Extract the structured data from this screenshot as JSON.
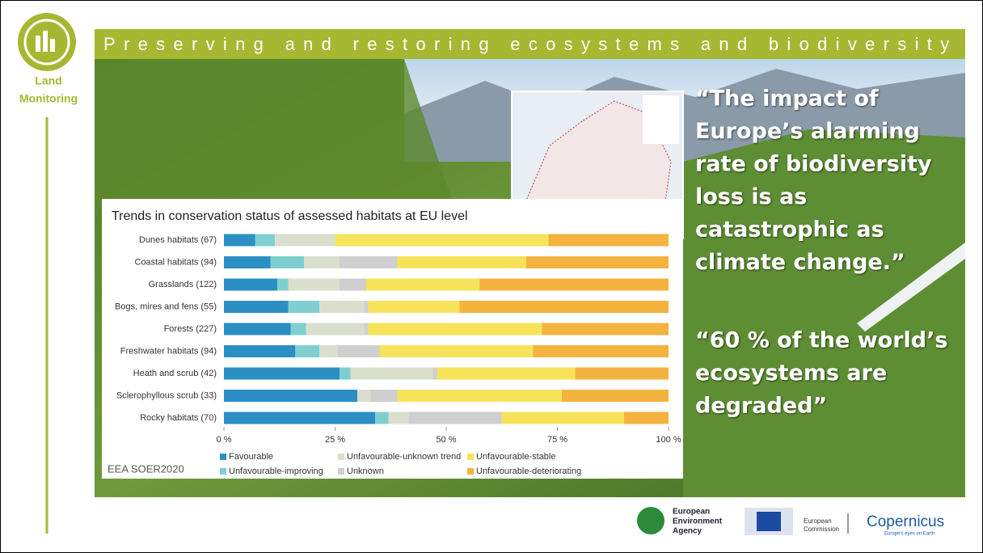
{
  "header": {
    "title": "Preserving and restoring ecosystems and biodiversity",
    "section": [
      "Land",
      "Monitoring"
    ]
  },
  "quotes": [
    [
      "“The impact of",
      "Europe’s alarming",
      "rate of biodiversity",
      "loss is as",
      "catastrophic as",
      "climate change.”"
    ],
    [
      "“60 % of the world’s",
      "ecosystems are",
      "degraded”"
    ]
  ],
  "footer": {
    "eea": [
      "European",
      "Environment",
      "Agency"
    ],
    "ec": [
      "European",
      "Commission"
    ],
    "copernicus": "Copernicus",
    "copernicus_tagline": "Europe's eyes on Earth"
  },
  "chart_data": {
    "type": "stacked-barh",
    "title": "Trends in conservation status of assessed habitats at EU level",
    "source": "EEA SOER2020",
    "categories": [
      "Dunes habitats (67)",
      "Coastal habitats (94)",
      "Grasslands (122)",
      "Bogs, mires and fens (55)",
      "Forests (227)",
      "Freshwater habitats (94)",
      "Heath and scrub (42)",
      "Sclerophyllous scrub (33)",
      "Rocky habitats (70)"
    ],
    "series": [
      {
        "name": "Favourable",
        "color": "#2b8fc4",
        "values": [
          7,
          10.5,
          12,
          14.5,
          15,
          16,
          26,
          30,
          34
        ]
      },
      {
        "name": "Unfavourable-improving",
        "color": "#7fcfd1",
        "values": [
          4.5,
          7.5,
          2.5,
          7,
          3.5,
          5.5,
          2.5,
          0,
          3
        ]
      },
      {
        "name": "Unfavourable-unknown trend",
        "color": "#d9dfcc",
        "values": [
          13.5,
          8,
          11.5,
          10,
          13,
          4,
          18.5,
          3,
          4.5
        ]
      },
      {
        "name": "Unknown",
        "color": "#cfcfcf",
        "values": [
          0,
          13,
          6,
          1,
          1,
          9.5,
          1,
          6,
          21
        ]
      },
      {
        "name": "Unfavourable-stable",
        "color": "#f7e35a",
        "values": [
          48,
          29,
          25.5,
          20.5,
          39,
          34.5,
          31,
          37,
          27.5
        ]
      },
      {
        "name": "Unfavourable-deteriorating",
        "color": "#f4b23e",
        "values": [
          27,
          32,
          42.5,
          47,
          28.5,
          30.5,
          21,
          24,
          10
        ]
      }
    ],
    "xlim": [
      0,
      100
    ],
    "xticks": [
      {
        "value": 0,
        "label": "0 %"
      },
      {
        "value": 25,
        "label": "25 %"
      },
      {
        "value": 50,
        "label": "50 %"
      },
      {
        "value": 75,
        "label": "75 %"
      },
      {
        "value": 100,
        "label": "100 %"
      }
    ],
    "grid": false
  }
}
